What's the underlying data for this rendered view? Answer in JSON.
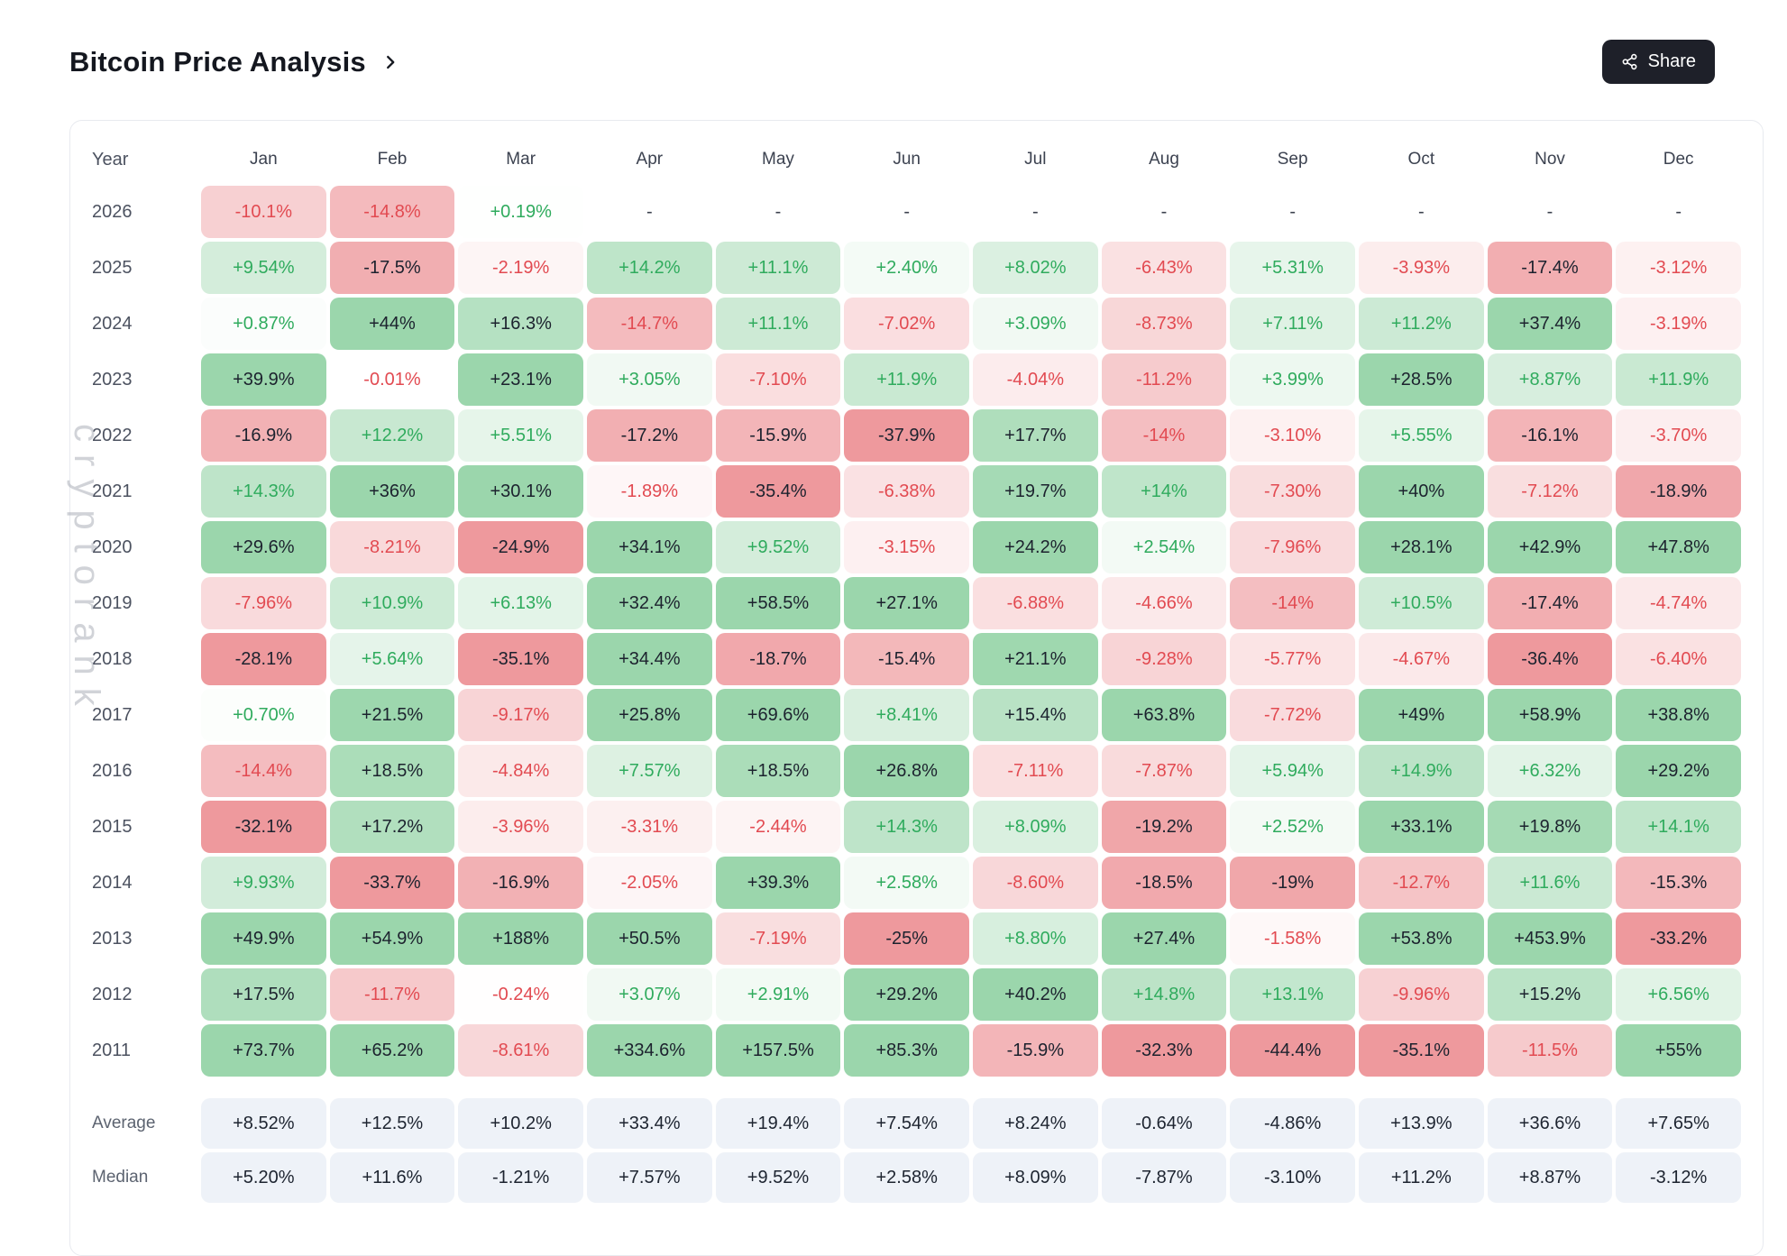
{
  "page": {
    "title": "Bitcoin Price Analysis",
    "share_label": "Share",
    "watermark": "cryptorank"
  },
  "colors": {
    "positive_text": "#2fab5d",
    "negative_text": "#e24a51",
    "strong_text": "#1c222e",
    "positive_max": "#9bd6ac",
    "negative_max": "#ee999d",
    "summary_bg": "#eef2f8",
    "share_button_bg": "#1e2029"
  },
  "table": {
    "year_header": "Year",
    "months": [
      "Jan",
      "Feb",
      "Mar",
      "Apr",
      "May",
      "Jun",
      "Jul",
      "Aug",
      "Sep",
      "Oct",
      "Nov",
      "Dec"
    ],
    "rows": [
      {
        "year": "2026",
        "values": [
          "-10.1%",
          "-14.8%",
          "+0.19%",
          "-",
          "-",
          "-",
          "-",
          "-",
          "-",
          "-",
          "-",
          "-"
        ]
      },
      {
        "year": "2025",
        "values": [
          "+9.54%",
          "-17.5%",
          "-2.19%",
          "+14.2%",
          "+11.1%",
          "+2.40%",
          "+8.02%",
          "-6.43%",
          "+5.31%",
          "-3.93%",
          "-17.4%",
          "-3.12%"
        ]
      },
      {
        "year": "2024",
        "values": [
          "+0.87%",
          "+44%",
          "+16.3%",
          "-14.7%",
          "+11.1%",
          "-7.02%",
          "+3.09%",
          "-8.73%",
          "+7.11%",
          "+11.2%",
          "+37.4%",
          "-3.19%"
        ]
      },
      {
        "year": "2023",
        "values": [
          "+39.9%",
          "-0.01%",
          "+23.1%",
          "+3.05%",
          "-7.10%",
          "+11.9%",
          "-4.04%",
          "-11.2%",
          "+3.99%",
          "+28.5%",
          "+8.87%",
          "+11.9%"
        ]
      },
      {
        "year": "2022",
        "values": [
          "-16.9%",
          "+12.2%",
          "+5.51%",
          "-17.2%",
          "-15.9%",
          "-37.9%",
          "+17.7%",
          "-14%",
          "-3.10%",
          "+5.55%",
          "-16.1%",
          "-3.70%"
        ]
      },
      {
        "year": "2021",
        "values": [
          "+14.3%",
          "+36%",
          "+30.1%",
          "-1.89%",
          "-35.4%",
          "-6.38%",
          "+19.7%",
          "+14%",
          "-7.30%",
          "+40%",
          "-7.12%",
          "-18.9%"
        ]
      },
      {
        "year": "2020",
        "values": [
          "+29.6%",
          "-8.21%",
          "-24.9%",
          "+34.1%",
          "+9.52%",
          "-3.15%",
          "+24.2%",
          "+2.54%",
          "-7.96%",
          "+28.1%",
          "+42.9%",
          "+47.8%"
        ]
      },
      {
        "year": "2019",
        "values": [
          "-7.96%",
          "+10.9%",
          "+6.13%",
          "+32.4%",
          "+58.5%",
          "+27.1%",
          "-6.88%",
          "-4.66%",
          "-14%",
          "+10.5%",
          "-17.4%",
          "-4.74%"
        ]
      },
      {
        "year": "2018",
        "values": [
          "-28.1%",
          "+5.64%",
          "-35.1%",
          "+34.4%",
          "-18.7%",
          "-15.4%",
          "+21.1%",
          "-9.28%",
          "-5.77%",
          "-4.67%",
          "-36.4%",
          "-6.40%"
        ]
      },
      {
        "year": "2017",
        "values": [
          "+0.70%",
          "+21.5%",
          "-9.17%",
          "+25.8%",
          "+69.6%",
          "+8.41%",
          "+15.4%",
          "+63.8%",
          "-7.72%",
          "+49%",
          "+58.9%",
          "+38.8%"
        ]
      },
      {
        "year": "2016",
        "values": [
          "-14.4%",
          "+18.5%",
          "-4.84%",
          "+7.57%",
          "+18.5%",
          "+26.8%",
          "-7.11%",
          "-7.87%",
          "+5.94%",
          "+14.9%",
          "+6.32%",
          "+29.2%"
        ]
      },
      {
        "year": "2015",
        "values": [
          "-32.1%",
          "+17.2%",
          "-3.96%",
          "-3.31%",
          "-2.44%",
          "+14.3%",
          "+8.09%",
          "-19.2%",
          "+2.52%",
          "+33.1%",
          "+19.8%",
          "+14.1%"
        ]
      },
      {
        "year": "2014",
        "values": [
          "+9.93%",
          "-33.7%",
          "-16.9%",
          "-2.05%",
          "+39.3%",
          "+2.58%",
          "-8.60%",
          "-18.5%",
          "-19%",
          "-12.7%",
          "+11.6%",
          "-15.3%"
        ]
      },
      {
        "year": "2013",
        "values": [
          "+49.9%",
          "+54.9%",
          "+188%",
          "+50.5%",
          "-7.19%",
          "-25%",
          "+8.80%",
          "+27.4%",
          "-1.58%",
          "+53.8%",
          "+453.9%",
          "-33.2%"
        ]
      },
      {
        "year": "2012",
        "values": [
          "+17.5%",
          "-11.7%",
          "-0.24%",
          "+3.07%",
          "+2.91%",
          "+29.2%",
          "+40.2%",
          "+14.8%",
          "+13.1%",
          "-9.96%",
          "+15.2%",
          "+6.56%"
        ]
      },
      {
        "year": "2011",
        "values": [
          "+73.7%",
          "+65.2%",
          "-8.61%",
          "+334.6%",
          "+157.5%",
          "+85.3%",
          "-15.9%",
          "-32.3%",
          "-44.4%",
          "-35.1%",
          "-11.5%",
          "+55%"
        ]
      }
    ],
    "summary": [
      {
        "label": "Average",
        "values": [
          "+8.52%",
          "+12.5%",
          "+10.2%",
          "+33.4%",
          "+19.4%",
          "+7.54%",
          "+8.24%",
          "-0.64%",
          "-4.86%",
          "+13.9%",
          "+36.6%",
          "+7.65%"
        ]
      },
      {
        "label": "Median",
        "values": [
          "+5.20%",
          "+11.6%",
          "-1.21%",
          "+7.57%",
          "+9.52%",
          "+2.58%",
          "+8.09%",
          "-7.87%",
          "-3.10%",
          "+11.2%",
          "+8.87%",
          "-3.12%"
        ]
      }
    ]
  }
}
